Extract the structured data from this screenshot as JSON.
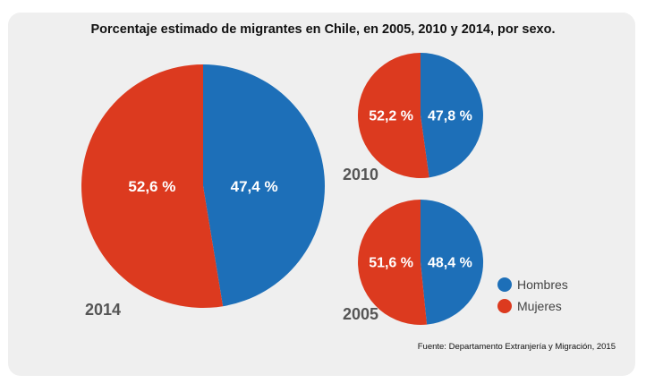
{
  "title": "Porcentaje estimado de migrantes en Chile, en 2005, 2010 y 2014, por sexo.",
  "source": "Fuente: Departamento Extranjería y Migración, 2015",
  "colors": {
    "hombres": "#1d6fb8",
    "mujeres": "#dc3a1f",
    "background": "#efefef"
  },
  "chart_data": [
    {
      "type": "pie",
      "year_label": "2014",
      "slices": [
        {
          "category": "Hombres",
          "value": 47.4,
          "label": "47,4 %"
        },
        {
          "category": "Mujeres",
          "value": 52.6,
          "label": "52,6 %"
        }
      ]
    },
    {
      "type": "pie",
      "year_label": "2010",
      "slices": [
        {
          "category": "Hombres",
          "value": 47.8,
          "label": "47,8 %"
        },
        {
          "category": "Mujeres",
          "value": 52.2,
          "label": "52,2 %"
        }
      ]
    },
    {
      "type": "pie",
      "year_label": "2005",
      "slices": [
        {
          "category": "Hombres",
          "value": 48.4,
          "label": "48,4 %"
        },
        {
          "category": "Mujeres",
          "value": 51.6,
          "label": "51,6 %"
        }
      ]
    }
  ],
  "legend": [
    {
      "name": "Hombres",
      "color": "#1d6fb8"
    },
    {
      "name": "Mujeres",
      "color": "#dc3a1f"
    }
  ]
}
